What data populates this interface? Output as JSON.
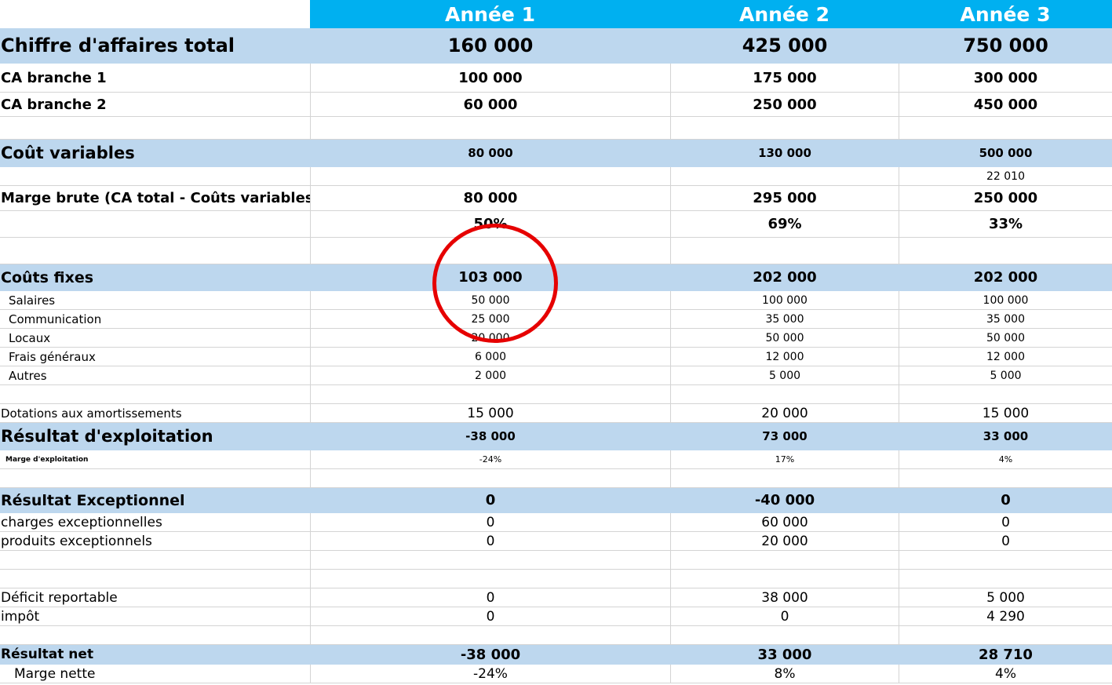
{
  "header": {
    "year1": "Année 1",
    "year2": "Année 2",
    "year3": "Année 3"
  },
  "rows": {
    "ca_total": {
      "label": "Chiffre d'affaires total",
      "y1": "160 000",
      "y2": "425 000",
      "y3": "750 000"
    },
    "ca_b1": {
      "label": "CA branche 1",
      "y1": "100 000",
      "y2": "175 000",
      "y3": "300 000"
    },
    "ca_b2": {
      "label": "CA branche 2",
      "y1": "60 000",
      "y2": "250 000",
      "y3": "450 000"
    },
    "couts_var": {
      "label": "Coût variables",
      "y1": "80 000",
      "y2": "130 000",
      "y3": "500 000"
    },
    "extra": {
      "y3": "22 010"
    },
    "marge_brute": {
      "label": "Marge brute (CA total - Coûts variables)",
      "y1": "80 000",
      "y2": "295 000",
      "y3": "250 000"
    },
    "marge_brute_pct": {
      "y1": "50%",
      "y2": "69%",
      "y3": "33%"
    },
    "couts_fixes": {
      "label": "Coûts fixes",
      "y1": "103 000",
      "y2": "202 000",
      "y3": "202 000"
    },
    "salaires": {
      "label": "Salaires",
      "y1": "50 000",
      "y2": "100 000",
      "y3": "100 000"
    },
    "communication": {
      "label": "Communication",
      "y1": "25 000",
      "y2": "35 000",
      "y3": "35 000"
    },
    "locaux": {
      "label": "Locaux",
      "y1": "20 000",
      "y2": "50 000",
      "y3": "50 000"
    },
    "frais_generaux": {
      "label": "Frais généraux",
      "y1": "6 000",
      "y2": "12 000",
      "y3": "12 000"
    },
    "autres": {
      "label": "Autres",
      "y1": "2 000",
      "y2": "5 000",
      "y3": "5 000"
    },
    "dotations": {
      "label": "Dotations aux amortissements",
      "y1": "15 000",
      "y2": "20 000",
      "y3": "15 000"
    },
    "resultat_exploitation": {
      "label": "Résultat d'exploitation",
      "y1": "-38 000",
      "y2": "73 000",
      "y3": "33 000"
    },
    "marge_exploitation": {
      "label": "Marge d'exploitation",
      "y1": "-24%",
      "y2": "17%",
      "y3": "4%"
    },
    "resultat_exceptionnel": {
      "label": "Résultat Exceptionnel",
      "y1": "0",
      "y2": "-40 000",
      "y3": "0"
    },
    "charges_exc": {
      "label": "charges exceptionnelles",
      "y1": "0",
      "y2": "60 000",
      "y3": "0"
    },
    "produits_exc": {
      "label": "produits exceptionnels",
      "y1": "0",
      "y2": "20 000",
      "y3": "0"
    },
    "deficit": {
      "label": "Déficit reportable",
      "y1": "0",
      "y2": "38 000",
      "y3": "5 000"
    },
    "impot": {
      "label": "impôt",
      "y1": "0",
      "y2": "0",
      "y3": "4 290"
    },
    "resultat_net": {
      "label": "Résultat net",
      "y1": "-38 000",
      "y2": "33 000",
      "y3": "28 710"
    },
    "marge_nette": {
      "label": "Marge nette",
      "y1": "-24%",
      "y2": "8%",
      "y3": "4%"
    }
  },
  "colors": {
    "header_bg": "#00b0f0",
    "band_bg": "#bdd7ee",
    "highlight_circle": "#e60000",
    "grid": "#d4d4d4"
  }
}
